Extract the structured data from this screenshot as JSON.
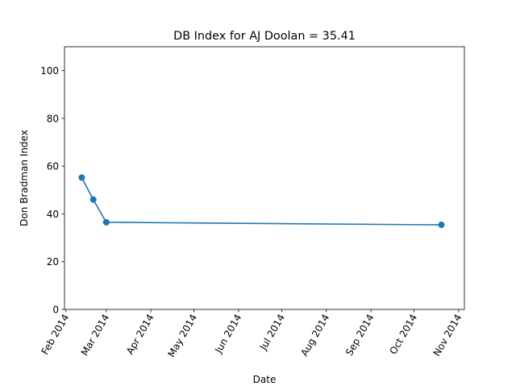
{
  "chart_data": {
    "type": "line",
    "title": "DB Index for AJ Doolan = 35.41",
    "xlabel": "Date",
    "ylabel": "Don Bradman Index",
    "ylim": [
      0,
      110
    ],
    "xlim": [
      "2014-01-31",
      "2014-11-05"
    ],
    "grid": false,
    "yticks": [
      0,
      20,
      40,
      60,
      80,
      100
    ],
    "xticks": [
      {
        "date": "2014-02-01",
        "label": "Feb 2014"
      },
      {
        "date": "2014-03-01",
        "label": "Mar 2014"
      },
      {
        "date": "2014-04-01",
        "label": "Apr 2014"
      },
      {
        "date": "2014-05-01",
        "label": "May 2014"
      },
      {
        "date": "2014-06-01",
        "label": "Jun 2014"
      },
      {
        "date": "2014-07-01",
        "label": "Jul 2014"
      },
      {
        "date": "2014-08-01",
        "label": "Aug 2014"
      },
      {
        "date": "2014-09-01",
        "label": "Sep 2014"
      },
      {
        "date": "2014-10-01",
        "label": "Oct 2014"
      },
      {
        "date": "2014-11-01",
        "label": "Nov 2014"
      }
    ],
    "series": [
      {
        "color": "#1f77b4",
        "marker": "circle",
        "points": [
          {
            "x": "2014-02-12",
            "y": 55.2
          },
          {
            "x": "2014-02-20",
            "y": 46.0
          },
          {
            "x": "2014-03-01",
            "y": 36.5
          },
          {
            "x": "2014-10-20",
            "y": 35.41
          }
        ]
      }
    ]
  }
}
